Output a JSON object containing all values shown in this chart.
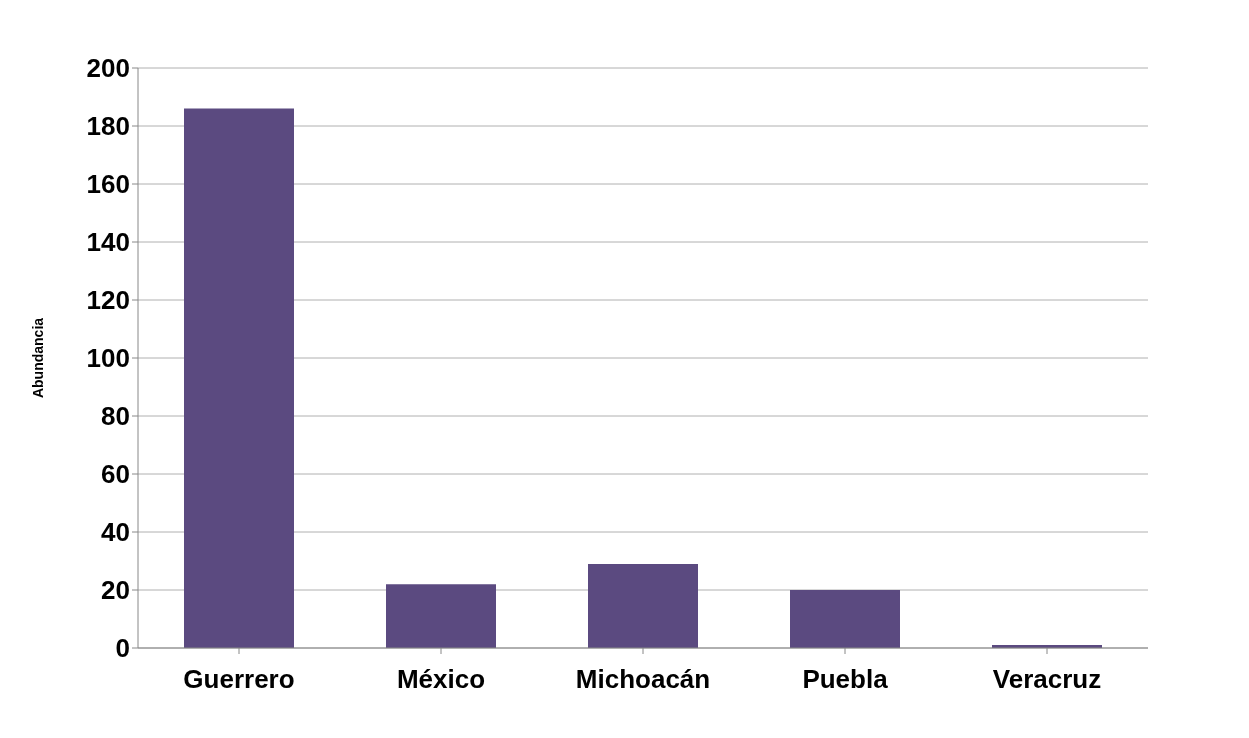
{
  "chart_data": {
    "type": "bar",
    "ylabel": "Abundancia",
    "categories": [
      "Guerrero",
      "México",
      "Michoacán",
      "Puebla",
      "Veracruz"
    ],
    "values": [
      186,
      22,
      29,
      20,
      1
    ],
    "color": "#5b4a80",
    "ylim": [
      0,
      200
    ],
    "yticks": [
      0,
      20,
      40,
      60,
      80,
      100,
      120,
      140,
      160,
      180,
      200
    ],
    "grid": "y"
  }
}
